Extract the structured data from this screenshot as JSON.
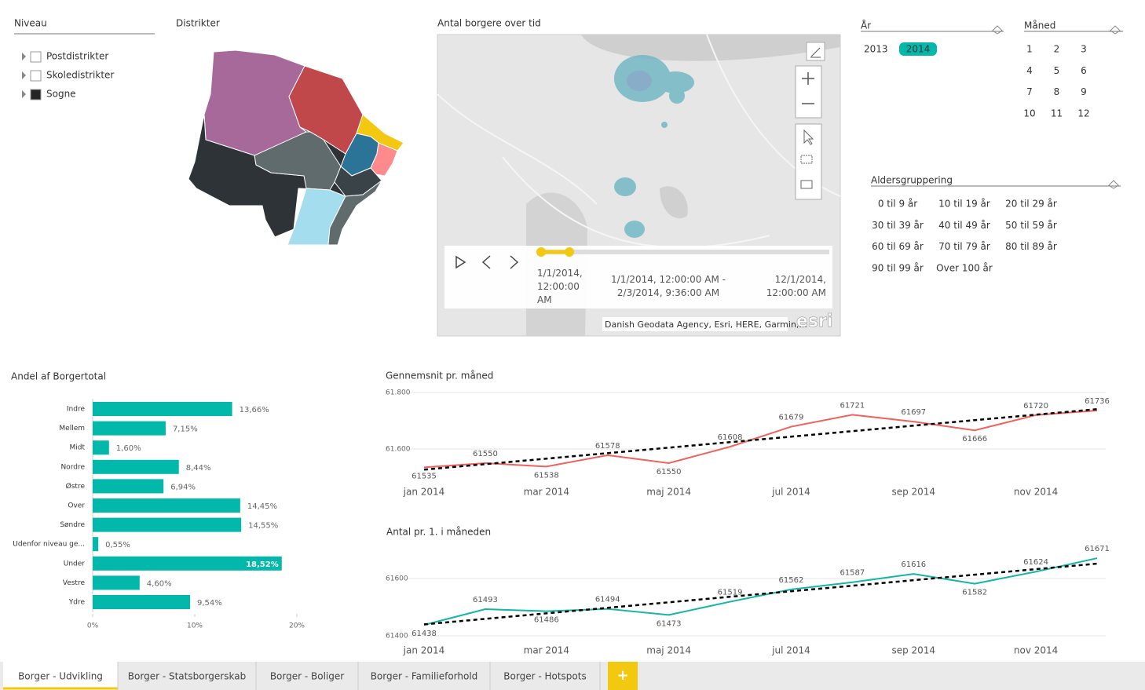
{
  "niveau": {
    "title": "Niveau",
    "items": [
      "Postdistrikter",
      "Skoledistrikter",
      "Sogne"
    ],
    "checked_index": 2
  },
  "distrikter": {
    "title": "Distrikter"
  },
  "map": {
    "title": "Antal borgere over tid",
    "timeline": {
      "start": "1/1/2014, 12:00:00 AM",
      "range": "1/1/2014, 12:00:00 AM - 2/3/2014, 9:36:00 AM",
      "end": "12/1/2014, 12:00:00 AM"
    },
    "attribution": "Danish Geodata Agency, Esri, HERE, Garmin,...",
    "logo": "esri"
  },
  "slicers": {
    "aar": {
      "title": "År",
      "items": [
        "2013",
        "2014"
      ],
      "selected_index": 1
    },
    "maaned": {
      "title": "Måned",
      "items": [
        1,
        2,
        3,
        4,
        5,
        6,
        7,
        8,
        9,
        10,
        11,
        12
      ]
    },
    "alder": {
      "title": "Aldersgruppering",
      "items": [
        "0 til 9 år",
        "10 til 19 år",
        "20 til 29 år",
        "30 til 39 år",
        "40 til 49 år",
        "50 til 59 år",
        "60 til 69 år",
        "70 til 79 år",
        "80 til 89 år",
        "90 til 99 år",
        "Over 100 år"
      ]
    }
  },
  "chart_data": [
    {
      "type": "bar",
      "orientation": "horizontal",
      "title": "Andel af Borgertotal",
      "categories": [
        "Indre",
        "Mellem",
        "Midt",
        "Nordre",
        "Østre",
        "Over",
        "Søndre",
        "Udenfor niveau ge...",
        "Under",
        "Vestre",
        "Ydre"
      ],
      "values": [
        13.66,
        7.15,
        1.6,
        8.44,
        6.94,
        14.45,
        14.55,
        0.55,
        18.52,
        4.6,
        9.54
      ],
      "value_labels": [
        "13,66%",
        "7,15%",
        "1,60%",
        "8,44%",
        "6,94%",
        "14,45%",
        "14,55%",
        "0,55%",
        "18,52%",
        "4,60%",
        "9,54%"
      ],
      "color": "#01b8aa",
      "xlim": [
        0,
        20
      ],
      "xticks": [
        {
          "value": 0,
          "label": "0%"
        },
        {
          "value": 10,
          "label": "10%"
        },
        {
          "value": 20,
          "label": "20%"
        }
      ]
    },
    {
      "type": "line",
      "title": "Gennemsnit pr. måned",
      "categories": [
        "jan 2014",
        null,
        "mar 2014",
        null,
        "maj 2014",
        null,
        "jul 2014",
        null,
        "sep 2014",
        null,
        "nov 2014",
        null
      ],
      "series": [
        {
          "color": "#f0625d",
          "values": [
            61535,
            61550,
            61538,
            61578,
            61550,
            61608,
            61679,
            61721,
            61697,
            61666,
            61720,
            61736
          ]
        }
      ],
      "trend": {
        "color": "#000000",
        "values": [
          61527,
          61741
        ]
      },
      "ylim": [
        61500,
        61800
      ],
      "yticks": [
        {
          "value": 61600,
          "label": "61.600"
        },
        {
          "value": 61800,
          "label": "61.800"
        }
      ],
      "grid": true
    },
    {
      "type": "line",
      "title": "Antal pr. 1. i måneden",
      "categories": [
        "jan 2014",
        null,
        "mar 2014",
        null,
        "maj 2014",
        null,
        "jul 2014",
        null,
        "sep 2014",
        null,
        "nov 2014",
        null
      ],
      "series": [
        {
          "color": "#15b5a6",
          "values": [
            61438,
            61493,
            61486,
            61494,
            61473,
            61519,
            61562,
            61587,
            61616,
            61582,
            61624,
            61671
          ]
        }
      ],
      "trend": {
        "color": "#000000",
        "values": [
          61440,
          61652
        ]
      },
      "ylim": [
        61400,
        61700
      ],
      "yticks": [
        {
          "value": 61400,
          "label": "61400"
        },
        {
          "value": 61600,
          "label": "61600"
        }
      ],
      "grid": true
    }
  ],
  "tabs": {
    "items": [
      "Borger - Udvikling",
      "Borger - Statsborgerskab",
      "Borger - Boliger",
      "Borger - Familieforhold",
      "Borger - Hotspots"
    ],
    "active_index": 0,
    "add": "+"
  }
}
